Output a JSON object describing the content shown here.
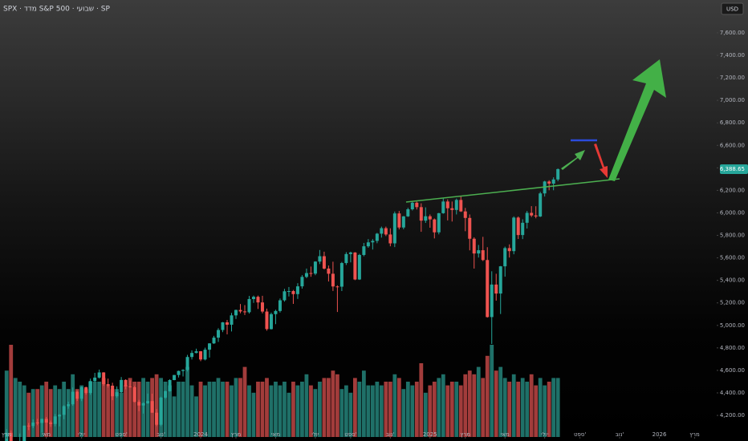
{
  "chart_data": {
    "type": "candlestick",
    "title": "SPX · מדד S&P 500 · שבועי · SP",
    "currency": "USD",
    "x": [
      0,
      1,
      2,
      3,
      4,
      5,
      6,
      7,
      8,
      9,
      10,
      11,
      12,
      13,
      14,
      15,
      16,
      17,
      18,
      19,
      20,
      21,
      22,
      23,
      24,
      25,
      26,
      27,
      28,
      29,
      30,
      31,
      32,
      33,
      34,
      35,
      36,
      37,
      38,
      39,
      40,
      41,
      42,
      43,
      44,
      45,
      46,
      47,
      48,
      49,
      50,
      51,
      52,
      53,
      54,
      55,
      56,
      57,
      58,
      59,
      60,
      61,
      62,
      63,
      64,
      65,
      66,
      67,
      68,
      69,
      70,
      71,
      72,
      73,
      74,
      75,
      76,
      77,
      78,
      79,
      80,
      81,
      82,
      83,
      84,
      85,
      86,
      87,
      88,
      89,
      90,
      91,
      92,
      93,
      94,
      95,
      96,
      97,
      98,
      99,
      100,
      101,
      102,
      103,
      104,
      105,
      106,
      107,
      108,
      109,
      110,
      111,
      112,
      113,
      114,
      115,
      116,
      117,
      118,
      119,
      120,
      121,
      122,
      123,
      124,
      125
    ],
    "open": [
      3970,
      4045,
      3861,
      3917,
      3970,
      4109,
      4105,
      4137,
      4133,
      4169,
      4136,
      4124,
      4191,
      4205,
      4282,
      4299,
      4410,
      4348,
      4450,
      4399,
      4505,
      4536,
      4582,
      4478,
      4464,
      4370,
      4406,
      4515,
      4457,
      4450,
      4320,
      4288,
      4308,
      4327,
      4224,
      4117,
      4358,
      4415,
      4514,
      4559,
      4595,
      4604,
      4719,
      4755,
      4770,
      4697,
      4784,
      4840,
      4891,
      4959,
      5027,
      5006,
      5089,
      5137,
      5124,
      5117,
      5234,
      5254,
      5204,
      5123,
      4967,
      5100,
      5128,
      5223,
      5303,
      5305,
      5278,
      5347,
      5431,
      5465,
      5460,
      5567,
      5615,
      5505,
      5459,
      5346,
      5344,
      5554,
      5634,
      5648,
      5408,
      5626,
      5703,
      5738,
      5751,
      5815,
      5864,
      5808,
      5729,
      5995,
      5870,
      5969,
      6032,
      6090,
      6051,
      5931,
      5970,
      5942,
      5827,
      5997,
      6101,
      6041,
      6026,
      6115,
      6013,
      5955,
      5770,
      5639,
      5668,
      5581,
      5074,
      5363,
      5283,
      5525,
      5687,
      5660,
      5958,
      5803,
      5912,
      6000,
      5977,
      5968,
      6173,
      6279,
      6260,
      6297
    ],
    "high": [
      4078,
      4067,
      3937,
      4039,
      4110,
      4133,
      4164,
      4169,
      4170,
      4186,
      4154,
      4212,
      4212,
      4291,
      4322,
      4448,
      4419,
      4458,
      4456,
      4527,
      4578,
      4607,
      4584,
      4527,
      4490,
      4458,
      4541,
      4521,
      4511,
      4462,
      4338,
      4317,
      4394,
      4393,
      4256,
      4366,
      4420,
      4521,
      4560,
      4598,
      4610,
      4738,
      4778,
      4793,
      4772,
      4802,
      4842,
      4907,
      4975,
      5030,
      5048,
      5111,
      5140,
      5190,
      5180,
      5262,
      5265,
      5265,
      5263,
      5149,
      5114,
      5139,
      5239,
      5325,
      5341,
      5315,
      5375,
      5447,
      5505,
      5523,
      5570,
      5670,
      5655,
      5532,
      5566,
      5356,
      5564,
      5651,
      5655,
      5651,
      5636,
      5733,
      5767,
      5767,
      5822,
      5878,
      5878,
      5863,
      6012,
      6017,
      5972,
      6045,
      6099,
      6100,
      6085,
      6049,
      5986,
      5950,
      6000,
      6128,
      6120,
      6101,
      6127,
      6147,
      6044,
      5986,
      5783,
      5715,
      5787,
      5695,
      5481,
      5459,
      5528,
      5700,
      5720,
      5969,
      5968,
      5943,
      6017,
      6060,
      6059,
      6187,
      6285,
      6290,
      6316,
      6395
    ],
    "low": [
      3943,
      3846,
      3808,
      3916,
      3960,
      4069,
      4086,
      4113,
      4049,
      4048,
      4098,
      4103,
      4103,
      4166,
      4260,
      4286,
      4328,
      4327,
      4385,
      4383,
      4498,
      4527,
      4463,
      4448,
      4335,
      4356,
      4400,
      4432,
      4447,
      4316,
      4238,
      4216,
      4302,
      4223,
      4104,
      4104,
      4347,
      4411,
      4512,
      4537,
      4546,
      4590,
      4697,
      4751,
      4682,
      4689,
      4714,
      4835,
      4853,
      4940,
      4920,
      4946,
      5057,
      5108,
      5092,
      5105,
      5200,
      5146,
      5107,
      4953,
      4963,
      5011,
      5114,
      5211,
      5257,
      5191,
      5235,
      5327,
      5420,
      5432,
      5446,
      5545,
      5497,
      5390,
      5306,
      5119,
      5305,
      5537,
      5560,
      5402,
      5404,
      5614,
      5690,
      5674,
      5730,
      5780,
      5794,
      5703,
      5696,
      5853,
      5854,
      5964,
      6021,
      6030,
      5832,
      5911,
      5868,
      5773,
      5809,
      5992,
      5933,
      5923,
      5986,
      6008,
      5837,
      5667,
      5505,
      5603,
      5572,
      5069,
      4835,
      5220,
      5101,
      5433,
      5603,
      5632,
      5768,
      5767,
      5861,
      5963,
      5952,
      5963,
      6145,
      6201,
      6201,
      6281
    ],
    "close": [
      4045,
      3861,
      3917,
      3970,
      4109,
      4105,
      4137,
      4133,
      4169,
      4136,
      4124,
      4191,
      4205,
      4282,
      4299,
      4410,
      4348,
      4450,
      4399,
      4505,
      4536,
      4582,
      4478,
      4464,
      4370,
      4406,
      4515,
      4457,
      4450,
      4320,
      4288,
      4308,
      4327,
      4224,
      4117,
      4358,
      4415,
      4514,
      4559,
      4595,
      4604,
      4719,
      4755,
      4770,
      4697,
      4784,
      4840,
      4891,
      4959,
      5027,
      5006,
      5089,
      5137,
      5124,
      5117,
      5234,
      5254,
      5204,
      5123,
      4967,
      5100,
      5128,
      5223,
      5303,
      5305,
      5278,
      5347,
      5431,
      5465,
      5460,
      5567,
      5615,
      5505,
      5459,
      5346,
      5344,
      5554,
      5634,
      5648,
      5408,
      5626,
      5703,
      5738,
      5751,
      5815,
      5864,
      5808,
      5729,
      5995,
      5870,
      5969,
      6032,
      6090,
      6051,
      5931,
      5970,
      5942,
      5827,
      5997,
      6101,
      6041,
      6026,
      6115,
      6013,
      5955,
      5770,
      5639,
      5668,
      5581,
      5074,
      5363,
      5283,
      5525,
      5687,
      5660,
      5958,
      5803,
      5912,
      6000,
      5977,
      5968,
      6173,
      6279,
      6260,
      6297,
      6388.65
    ],
    "volume": [
      18,
      25,
      16,
      15,
      14,
      12,
      13,
      13,
      14,
      15,
      13,
      14,
      13,
      15,
      13,
      17,
      13,
      14,
      13,
      15,
      15,
      15,
      16,
      14,
      13,
      13,
      12,
      14,
      16,
      15,
      15,
      16,
      15,
      16,
      17,
      16,
      15,
      14,
      11,
      15,
      15,
      19,
      14,
      11,
      15,
      14,
      15,
      15,
      16,
      15,
      15,
      14,
      16,
      16,
      19,
      14,
      12,
      15,
      15,
      16,
      14,
      15,
      14,
      15,
      12,
      15,
      14,
      15,
      17,
      14,
      13,
      15,
      16,
      16,
      18,
      17,
      13,
      14,
      12,
      16,
      15,
      18,
      14,
      14,
      15,
      14,
      15,
      15,
      17,
      16,
      13,
      15,
      14,
      15,
      20,
      12,
      14,
      15,
      16,
      17,
      14,
      15,
      15,
      14,
      17,
      18,
      17,
      19,
      16,
      22,
      25,
      18,
      19,
      16,
      15,
      17,
      15,
      16,
      15,
      17,
      14,
      16,
      14,
      15,
      16,
      16
    ],
    "up_color": "#26a69a",
    "down_color": "#ef5350",
    "volume_up_color": "#1f7068",
    "volume_down_color": "#a23c3b",
    "xlim": [
      -1.5,
      161
    ],
    "xticks": [
      {
        "value": 0,
        "label": "מרץ"
      },
      {
        "value": 9,
        "label": "מאי"
      },
      {
        "value": 17,
        "label": "יולי"
      },
      {
        "value": 26,
        "label": "ספט'"
      },
      {
        "value": 35,
        "label": "נוב'"
      },
      {
        "value": 44,
        "label": "2024"
      },
      {
        "value": 52,
        "label": "מרץ"
      },
      {
        "value": 61,
        "label": "מאי"
      },
      {
        "value": 70,
        "label": "יולי"
      },
      {
        "value": 78,
        "label": "ספט'"
      },
      {
        "value": 87,
        "label": "נוב'"
      },
      {
        "value": 96,
        "label": "2025"
      },
      {
        "value": 104,
        "label": "מרץ"
      },
      {
        "value": 113,
        "label": "מאי"
      },
      {
        "value": 122,
        "label": "יולי"
      },
      {
        "value": 130,
        "label": "ספט'"
      },
      {
        "value": 139,
        "label": "נוב'"
      },
      {
        "value": 148,
        "label": "2026"
      },
      {
        "value": 156,
        "label": "מרץ"
      }
    ],
    "ylim": [
      4008,
      7892
    ],
    "yticks": [
      {
        "value": 4200,
        "label": "4,200.00"
      },
      {
        "value": 4400,
        "label": "4,400.00"
      },
      {
        "value": 4600,
        "label": "4,600.00"
      },
      {
        "value": 4800,
        "label": "4,800.00"
      },
      {
        "value": 5000,
        "label": "5,000.00"
      },
      {
        "value": 5200,
        "label": "5,200.00"
      },
      {
        "value": 5400,
        "label": "5,400.00"
      },
      {
        "value": 5600,
        "label": "5,600.00"
      },
      {
        "value": 5800,
        "label": "5,800.00"
      },
      {
        "value": 6000,
        "label": "6,000.00"
      },
      {
        "value": 6200,
        "label": "6,200.00"
      },
      {
        "value": 6400,
        "label": "6,400.00"
      },
      {
        "value": 6600,
        "label": "6,600.00"
      },
      {
        "value": 6800,
        "label": "6,800.00"
      },
      {
        "value": 7000,
        "label": "7,000.00"
      },
      {
        "value": 7200,
        "label": "7,200.00"
      },
      {
        "value": 7400,
        "label": "7,400.00"
      },
      {
        "value": 7600,
        "label": "7,600.00"
      }
    ],
    "last_price": {
      "value": 6388.65,
      "label": "6,388.65"
    },
    "grid": false
  }
}
